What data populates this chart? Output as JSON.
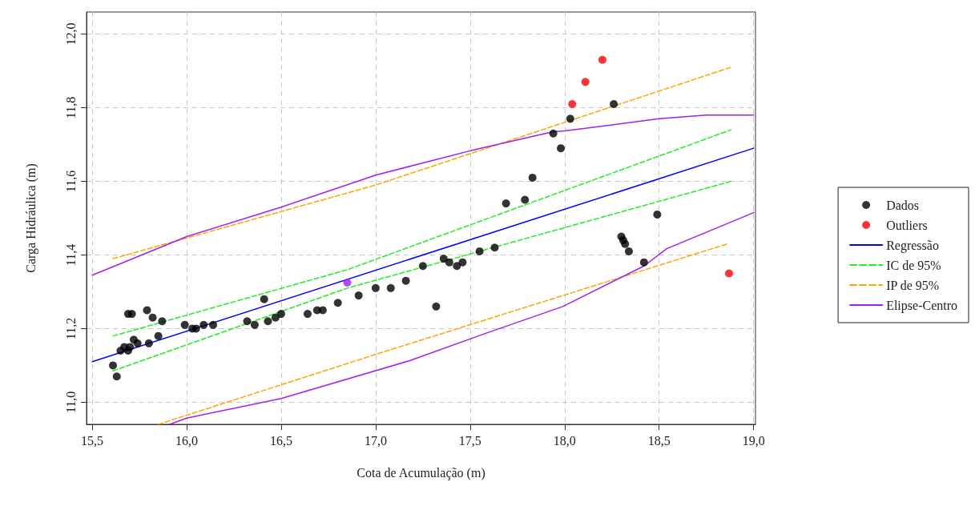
{
  "chart_data": {
    "type": "scatter",
    "xlabel": "Cota de Acumulação (m)",
    "ylabel": "Carga Hidráulica (m)",
    "xlim": [
      15.47,
      19.01
    ],
    "ylim": [
      10.94,
      12.06
    ],
    "xticks": [
      {
        "value": 15.5,
        "label": "15,5"
      },
      {
        "value": 16.0,
        "label": "16,0"
      },
      {
        "value": 16.5,
        "label": "16,5"
      },
      {
        "value": 17.0,
        "label": "17,0"
      },
      {
        "value": 17.5,
        "label": "17,5"
      },
      {
        "value": 18.0,
        "label": "18,0"
      },
      {
        "value": 18.5,
        "label": "18,5"
      },
      {
        "value": 19.0,
        "label": "19,0"
      }
    ],
    "yticks": [
      {
        "value": 11.0,
        "label": "11,0"
      },
      {
        "value": 11.2,
        "label": "11,2"
      },
      {
        "value": 11.4,
        "label": "11,4"
      },
      {
        "value": 11.6,
        "label": "11,6"
      },
      {
        "value": 11.8,
        "label": "11,8"
      },
      {
        "value": 12.0,
        "label": "12,0"
      }
    ],
    "grid": true,
    "legend": "right",
    "marker": "circle",
    "series": [
      {
        "name": "Dados",
        "color": "#000000",
        "x": [
          15.61,
          15.63,
          15.65,
          15.67,
          15.69,
          15.7,
          15.71,
          15.69,
          15.72,
          15.74,
          15.79,
          15.8,
          15.82,
          15.85,
          15.87,
          15.99,
          16.03,
          16.05,
          16.09,
          16.14,
          16.32,
          16.36,
          16.41,
          16.43,
          16.47,
          16.5,
          16.64,
          16.69,
          16.72,
          16.8,
          16.91,
          17.0,
          17.08,
          17.16,
          17.25,
          17.32,
          17.36,
          17.39,
          17.43,
          17.46,
          17.55,
          17.63,
          17.69,
          17.79,
          17.83,
          17.94,
          17.98,
          18.03,
          18.26,
          18.3,
          18.31,
          18.32,
          18.34,
          18.42,
          18.49
        ],
        "values": [
          11.1,
          11.07,
          11.14,
          11.15,
          11.14,
          11.15,
          11.24,
          11.24,
          11.17,
          11.16,
          11.25,
          11.16,
          11.23,
          11.18,
          11.22,
          11.21,
          11.2,
          11.2,
          11.21,
          11.21,
          11.22,
          11.21,
          11.28,
          11.22,
          11.23,
          11.24,
          11.24,
          11.25,
          11.25,
          11.27,
          11.29,
          11.31,
          11.31,
          11.33,
          11.37,
          11.26,
          11.39,
          11.38,
          11.37,
          11.38,
          11.41,
          11.42,
          11.54,
          11.55,
          11.61,
          11.73,
          11.69,
          11.77,
          11.81,
          11.45,
          11.44,
          11.43,
          11.41,
          11.38,
          11.51
        ]
      },
      {
        "name": "Outliers",
        "color": "#ff0000",
        "x": [
          18.04,
          18.11,
          18.2,
          18.87
        ],
        "values": [
          11.81,
          11.87,
          11.93,
          11.35
        ]
      },
      {
        "name": "Regressão",
        "type": "line",
        "marker": "none",
        "line_style": "solid",
        "color": "#0000ff",
        "x": [
          15.5,
          19.0
        ],
        "values": [
          11.11,
          11.69
        ]
      },
      {
        "name": "IC de 95%",
        "type": "line",
        "marker": "none",
        "line_style": "dashed",
        "color": "#22ee22",
        "x": [
          15.61,
          16.85,
          18.88
        ],
        "values": [
          11.18,
          11.36,
          11.74
        ]
      },
      {
        "type": "line",
        "marker": "none",
        "line_style": "dashed",
        "color": "#22ee22",
        "x": [
          15.61,
          16.85,
          18.88
        ],
        "values": [
          11.085,
          11.31,
          11.6
        ]
      },
      {
        "name": "IP de 95%",
        "type": "line",
        "marker": "none",
        "line_style": "dashed",
        "color": "#ffa500",
        "x": [
          15.61,
          17.0,
          18.88
        ],
        "values": [
          11.39,
          11.59,
          11.91
        ]
      },
      {
        "type": "line",
        "marker": "none",
        "line_style": "dashed",
        "color": "#ffa500",
        "x": [
          15.85,
          17.0,
          18.86
        ],
        "values": [
          10.94,
          11.13,
          11.43
        ]
      },
      {
        "name": "Elipse-Centro",
        "type": "line",
        "marker": "none",
        "line_style": "solid",
        "color": "#a020f0",
        "x": [
          15.5,
          16.0,
          16.5,
          17.0,
          17.5,
          17.94,
          18.0,
          18.5,
          18.75,
          19.0
        ],
        "values": [
          11.345,
          11.45,
          11.53,
          11.617,
          11.683,
          11.735,
          11.737,
          11.77,
          11.78,
          11.78
        ]
      },
      {
        "type": "line",
        "marker": "none",
        "line_style": "solid",
        "color": "#a020f0",
        "x": [
          15.91,
          16.0,
          16.5,
          17.18,
          17.57,
          17.99,
          18.42,
          18.54,
          19.0
        ],
        "values": [
          10.94,
          10.957,
          11.01,
          11.113,
          11.185,
          11.26,
          11.37,
          11.417,
          11.515
        ]
      },
      {
        "color": "#a020f0",
        "x": [
          16.85
        ],
        "values": [
          11.325
        ]
      }
    ]
  }
}
